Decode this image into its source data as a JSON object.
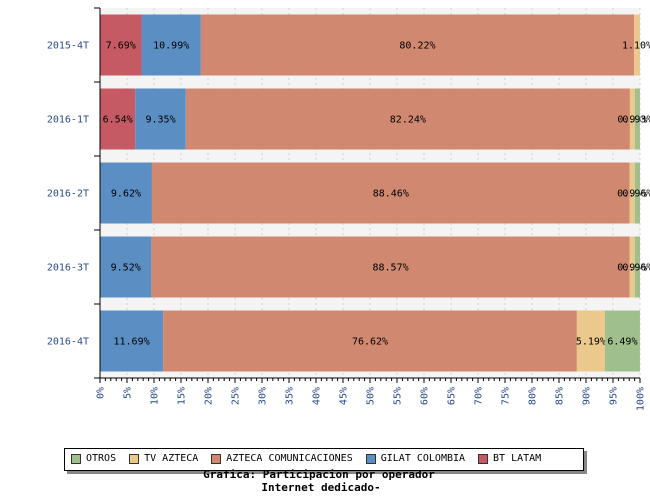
{
  "chart_data": {
    "type": "bar",
    "orientation": "horizontal",
    "stacked": true,
    "title": "Grafica: Participacion por operador",
    "subtitle": "Internet dedicado-",
    "categories": [
      "2015-4T",
      "2016-1T",
      "2016-2T",
      "2016-3T",
      "2016-4T"
    ],
    "x_ticks": [
      "0%",
      "5%",
      "10%",
      "15%",
      "20%",
      "25%",
      "30%",
      "35%",
      "40%",
      "45%",
      "50%",
      "55%",
      "60%",
      "65%",
      "70%",
      "75%",
      "80%",
      "85%",
      "90%",
      "95%",
      "100%"
    ],
    "xlim": [
      0,
      100
    ],
    "legend_position": "bottom",
    "series": [
      {
        "name": "BT LATAM",
        "color": "#c55a64",
        "values": [
          7.69,
          6.54,
          0,
          0,
          0
        ],
        "labels": [
          "7.69%",
          "6.54%",
          "",
          "",
          ""
        ]
      },
      {
        "name": "GILAT COLOMBIA",
        "color": "#5b8fc4",
        "values": [
          10.99,
          9.35,
          9.62,
          9.52,
          11.69
        ],
        "labels": [
          "10.99%",
          "9.35%",
          "9.62%",
          "9.52%",
          "11.69%"
        ]
      },
      {
        "name": "AZTECA COMUNICACIONES",
        "color": "#d08870",
        "values": [
          80.22,
          82.24,
          88.46,
          88.57,
          76.62
        ],
        "labels": [
          "80.22%",
          "82.24%",
          "88.46%",
          "88.57%",
          "76.62%"
        ]
      },
      {
        "name": "TV AZTECA",
        "color": "#ebc98c",
        "values": [
          1.1,
          0.93,
          0.96,
          0.95,
          5.19
        ],
        "labels": [
          "1.10%",
          "0.93%",
          "0.96%",
          "0.95%",
          "5.19%"
        ]
      },
      {
        "name": "OTROS",
        "color": "#9fbf8c",
        "values": [
          0,
          0.93,
          0.96,
          0.96,
          6.49
        ],
        "labels": [
          "",
          "0.93%",
          "0.96%",
          "0.96%",
          "6.49%"
        ]
      }
    ],
    "legend_order": [
      "OTROS",
      "TV AZTECA",
      "AZTECA COMUNICACIONES",
      "GILAT COLOMBIA",
      "BT LATAM"
    ]
  }
}
